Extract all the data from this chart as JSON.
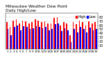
{
  "title": "Milwaukee Weather Dew Point",
  "subtitle": "Daily High/Low",
  "high_values": [
    68,
    55,
    72,
    75,
    65,
    72,
    70,
    65,
    68,
    75,
    72,
    68,
    70,
    65,
    65,
    78,
    80,
    60,
    68,
    65,
    35,
    68,
    62,
    72,
    68,
    60,
    70,
    65,
    68
  ],
  "low_values": [
    50,
    35,
    55,
    60,
    48,
    58,
    55,
    50,
    52,
    58,
    55,
    52,
    55,
    48,
    50,
    62,
    65,
    45,
    52,
    48,
    18,
    50,
    42,
    56,
    50,
    42,
    54,
    48,
    50
  ],
  "x_labels": [
    "1",
    "2",
    "3",
    "4",
    "5",
    "6",
    "7",
    "8",
    "9",
    "10",
    "11",
    "12",
    "13",
    "14",
    "15",
    "16",
    "17",
    "18",
    "19",
    "20",
    "21",
    "22",
    "23",
    "24",
    "25",
    "26",
    "27",
    "28",
    "29"
  ],
  "bar_color_high": "#FF0000",
  "bar_color_low": "#0000FF",
  "bg_color": "#ffffff",
  "ylim_min": 0,
  "ylim_max": 90,
  "ytick_values": [
    10,
    20,
    30,
    40,
    50,
    60,
    70,
    80
  ],
  "ylabel_fontsize": 3.5,
  "xlabel_fontsize": 3.0,
  "title_fontsize": 4.2,
  "legend_fontsize": 3.5,
  "bar_width": 0.38,
  "grid_color": "#cccccc"
}
